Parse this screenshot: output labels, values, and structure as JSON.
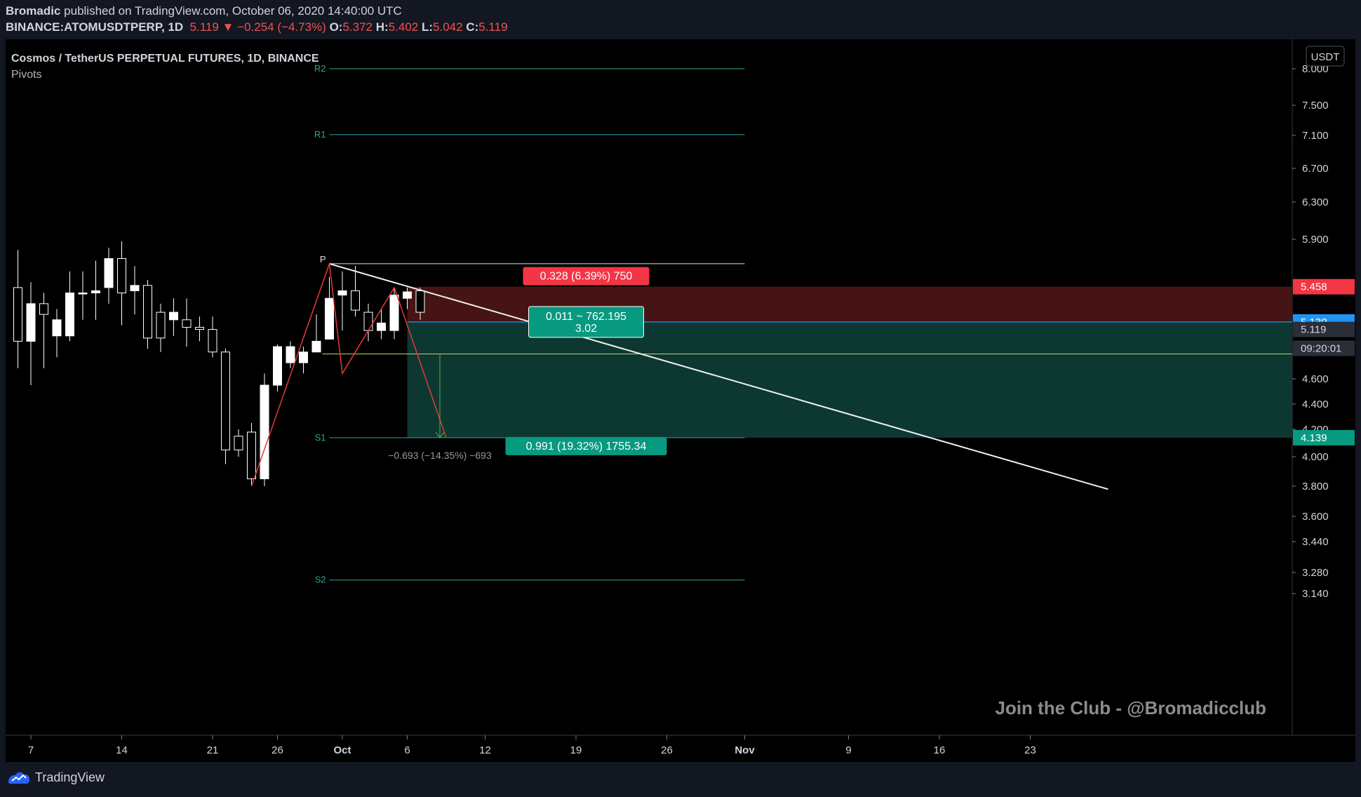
{
  "header": {
    "author": "Bromadic",
    "published_text": "published on TradingView.com, October 06, 2020 14:40:00 UTC",
    "symbol": "BINANCE:ATOMUSDTPERP, 1D",
    "last": "5.119",
    "change": "−0.254 (−4.73%)",
    "o_label": "O:",
    "o_value": "5.372",
    "h_label": "H:",
    "h_value": "5.402",
    "l_label": "L:",
    "l_value": "5.042",
    "c_label": "C:",
    "c_value": "5.119"
  },
  "legend": {
    "title": "Cosmos / TetherUS PERPETUAL FUTURES, 1D, BINANCE",
    "indicator": "Pivots"
  },
  "currency": "USDT",
  "watermark": "Join the Club - @Bromadicclub",
  "footer": {
    "brand": "TradingView"
  },
  "colors": {
    "background": "#000000",
    "pivot": "#26a69a",
    "stop_zone": "#4a1515",
    "target_zone": "#0d3b34",
    "entry_line": "#2196f3",
    "stop_badge": "#f23645",
    "target_badge": "#089981",
    "candle_up": "#ffffff",
    "trend": "#f0f0f0",
    "pattern": "#e53935",
    "projection_arrow": "#4caf50",
    "current_price_line": "#c8d050"
  },
  "chart_data": {
    "type": "candlestick",
    "symbol": "ATOMUSDTPERP",
    "interval": "1D",
    "y_axis_labels": [
      "8.000",
      "7.500",
      "7.100",
      "6.700",
      "6.300",
      "5.900",
      "4.600",
      "4.400",
      "4.200",
      "4.000",
      "3.800",
      "3.600",
      "3.440",
      "3.280",
      "3.140"
    ],
    "x_axis_labels": [
      "7",
      "14",
      "21",
      "26",
      "Oct",
      "6",
      "12",
      "19",
      "26",
      "Nov",
      "9",
      "16",
      "23"
    ],
    "candles": [
      {
        "date": "2020-09-06",
        "open": 5.45,
        "high": 5.8,
        "low": 4.7,
        "close": 4.95
      },
      {
        "date": "2020-09-07",
        "open": 4.95,
        "high": 5.5,
        "low": 4.55,
        "close": 5.3
      },
      {
        "date": "2020-09-08",
        "open": 5.3,
        "high": 5.4,
        "low": 4.7,
        "close": 5.2
      },
      {
        "date": "2020-09-09",
        "open": 5.0,
        "high": 5.25,
        "low": 4.8,
        "close": 5.15
      },
      {
        "date": "2020-09-10",
        "open": 5.0,
        "high": 5.6,
        "low": 4.95,
        "close": 5.4
      },
      {
        "date": "2020-09-11",
        "open": 5.4,
        "high": 5.6,
        "low": 5.15,
        "close": 5.4
      },
      {
        "date": "2020-09-12",
        "open": 5.4,
        "high": 5.7,
        "low": 5.15,
        "close": 5.42
      },
      {
        "date": "2020-09-13",
        "open": 5.45,
        "high": 5.82,
        "low": 5.3,
        "close": 5.72
      },
      {
        "date": "2020-09-14",
        "open": 5.72,
        "high": 5.88,
        "low": 5.1,
        "close": 5.4
      },
      {
        "date": "2020-09-15",
        "open": 5.42,
        "high": 5.65,
        "low": 5.2,
        "close": 5.47
      },
      {
        "date": "2020-09-16",
        "open": 5.47,
        "high": 5.52,
        "low": 4.88,
        "close": 4.98
      },
      {
        "date": "2020-09-17",
        "open": 5.22,
        "high": 5.3,
        "low": 4.85,
        "close": 4.98
      },
      {
        "date": "2020-09-18",
        "open": 5.15,
        "high": 5.35,
        "low": 5.0,
        "close": 5.22
      },
      {
        "date": "2020-09-19",
        "open": 5.15,
        "high": 5.35,
        "low": 4.9,
        "close": 5.08
      },
      {
        "date": "2020-09-20",
        "open": 5.08,
        "high": 5.18,
        "low": 4.95,
        "close": 5.06
      },
      {
        "date": "2020-09-21",
        "open": 5.06,
        "high": 5.18,
        "low": 4.8,
        "close": 4.85
      },
      {
        "date": "2020-09-22",
        "open": 4.85,
        "high": 4.88,
        "low": 3.95,
        "close": 4.05
      },
      {
        "date": "2020-09-23",
        "open": 4.15,
        "high": 4.2,
        "low": 4.0,
        "close": 4.05
      },
      {
        "date": "2020-09-24",
        "open": 4.18,
        "high": 4.25,
        "low": 3.8,
        "close": 3.85
      },
      {
        "date": "2020-09-25",
        "open": 3.85,
        "high": 4.65,
        "low": 3.8,
        "close": 4.55
      },
      {
        "date": "2020-09-26",
        "open": 4.55,
        "high": 4.92,
        "low": 4.5,
        "close": 4.9
      },
      {
        "date": "2020-09-27",
        "open": 4.75,
        "high": 4.95,
        "low": 4.7,
        "close": 4.9
      },
      {
        "date": "2020-09-28",
        "open": 4.75,
        "high": 4.9,
        "low": 4.65,
        "close": 4.85
      },
      {
        "date": "2020-09-29",
        "open": 4.85,
        "high": 5.2,
        "low": 4.85,
        "close": 4.95
      },
      {
        "date": "2020-09-30",
        "open": 4.97,
        "high": 5.55,
        "low": 4.97,
        "close": 5.35
      },
      {
        "date": "2020-10-01",
        "open": 5.38,
        "high": 5.6,
        "low": 5.05,
        "close": 5.42
      },
      {
        "date": "2020-10-02",
        "open": 5.42,
        "high": 5.65,
        "low": 5.18,
        "close": 5.24
      },
      {
        "date": "2020-10-03",
        "open": 5.22,
        "high": 5.3,
        "low": 4.95,
        "close": 5.05
      },
      {
        "date": "2020-10-04",
        "open": 5.05,
        "high": 5.25,
        "low": 4.97,
        "close": 5.12
      },
      {
        "date": "2020-10-05",
        "open": 5.05,
        "high": 5.45,
        "low": 4.97,
        "close": 5.38
      },
      {
        "date": "2020-10-06",
        "open": 5.35,
        "high": 5.45,
        "low": 5.25,
        "close": 5.41
      },
      {
        "date": "2020-10-07",
        "open": 5.42,
        "high": 5.45,
        "low": 5.15,
        "close": 5.22
      }
    ],
    "pivots": [
      {
        "label": "P",
        "value": 5.672
      },
      {
        "label": "R1",
        "value": 7.11
      },
      {
        "label": "R2",
        "value": 8.0
      },
      {
        "label": "S1",
        "value": 4.139
      },
      {
        "label": "S2",
        "value": 3.23
      }
    ],
    "position": {
      "entry": 5.13,
      "stop": 5.458,
      "target": 4.139,
      "stop_label": "0.328 (6.39%) 750",
      "target_label": "0.991 (19.32%) 1755.34",
      "ratio_label_line1": "0.011 ~ 762.195",
      "ratio_label_line2": "3.02"
    },
    "projection": {
      "from": 4.832,
      "to": 4.139,
      "label": "−0.693 (−14.35%) −693"
    },
    "price_tags": [
      {
        "label": "5.458",
        "kind": "stop"
      },
      {
        "label": "5.130",
        "kind": "entry"
      },
      {
        "label": "5.119",
        "kind": "last"
      },
      {
        "label": "09:20:01",
        "kind": "countdown"
      },
      {
        "label": "4.139",
        "kind": "target"
      }
    ],
    "trend_line": {
      "start_date": "2020-09-30",
      "start": 5.672,
      "end_date": "2020-11-29",
      "end": 3.78
    },
    "pattern_lines": [
      [
        "2020-09-24",
        3.8
      ],
      [
        "2020-09-30",
        5.672
      ],
      [
        "2020-10-01",
        4.65
      ],
      [
        "2020-10-05",
        5.45
      ],
      [
        "2020-10-09",
        4.139
      ]
    ]
  }
}
